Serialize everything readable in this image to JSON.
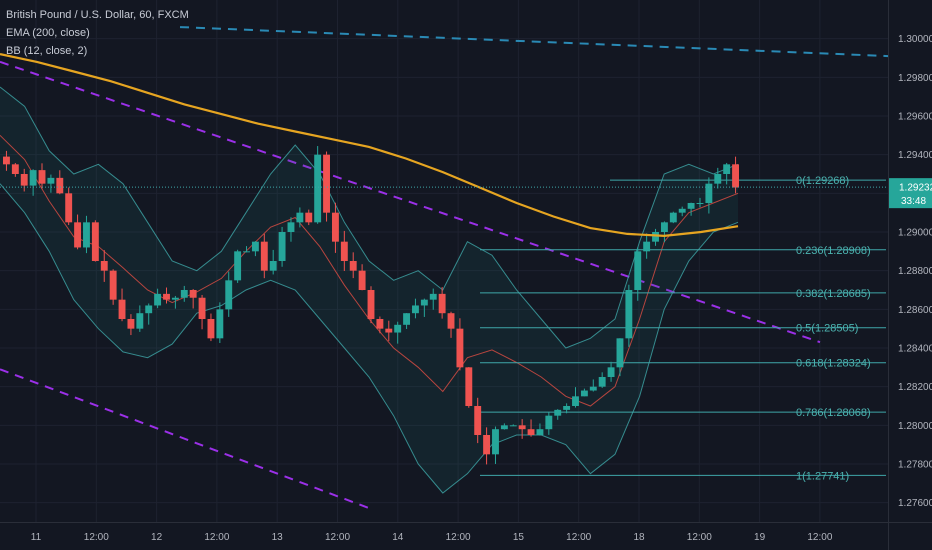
{
  "legend": {
    "symbol": "British Pound / U.S. Dollar, 60, FXCM",
    "ema": "EMA (200, close)",
    "bb": "BB (12, close, 2)"
  },
  "colors": {
    "background": "#131722",
    "grid": "#1e2230",
    "up": "#26a69a",
    "down": "#ef5350",
    "ema": "#e6a521",
    "bb_basis": "#b7453f",
    "bb_band": "#3fa7a9",
    "fib": "#3fa7a9",
    "trend_purple": "#9b30e8",
    "trend_blue": "#2a8ab5",
    "price_label_bg": "#26a69a",
    "price_dotted": "#3fa7a9"
  },
  "chart_data": {
    "type": "candlestick",
    "symbol": "British Pound / U.S. Dollar",
    "interval": "60",
    "x_ticks": [
      "11",
      "12:00",
      "12",
      "12:00",
      "13",
      "12:00",
      "14",
      "12:00",
      "15",
      "12:00",
      "18",
      "12:00",
      "19",
      "12:00"
    ],
    "y_ticks": [
      "1.27600",
      "1.27800",
      "1.28000",
      "1.28200",
      "1.28400",
      "1.28600",
      "1.28800",
      "1.29000",
      "1.29200",
      "1.29400",
      "1.29600",
      "1.29800",
      "1.30000"
    ],
    "ylim": [
      1.275,
      1.302
    ],
    "current_price": "1.29232",
    "countdown": "33:48",
    "fib_levels": [
      {
        "label": "0(1.29268)",
        "value": 1.29268
      },
      {
        "label": "0.236(1.28908)",
        "value": 1.28908
      },
      {
        "label": "0.382(1.28685)",
        "value": 1.28685
      },
      {
        "label": "0.5(1.28505)",
        "value": 1.28505
      },
      {
        "label": "0.618(1.28324)",
        "value": 1.28324
      },
      {
        "label": "0.786(1.28068)",
        "value": 1.28068
      },
      {
        "label": "1(1.27741)",
        "value": 1.27741
      }
    ],
    "close_path": [
      1.2935,
      1.293,
      1.2924,
      1.2932,
      1.2925,
      1.2928,
      1.292,
      1.2905,
      1.2892,
      1.2905,
      1.2885,
      1.288,
      1.2865,
      1.2855,
      1.285,
      1.2858,
      1.2862,
      1.2868,
      1.2865,
      1.2866,
      1.287,
      1.2866,
      1.2855,
      1.2845,
      1.286,
      1.2875,
      1.289,
      1.289,
      1.2895,
      1.288,
      1.2885,
      1.29,
      1.2905,
      1.291,
      1.2905,
      1.294,
      1.291,
      1.2895,
      1.2885,
      1.288,
      1.287,
      1.2855,
      1.285,
      1.2848,
      1.2852,
      1.2858,
      1.2862,
      1.2865,
      1.2868,
      1.2858,
      1.285,
      1.283,
      1.281,
      1.2795,
      1.2785,
      1.2798,
      1.28,
      1.28,
      1.2798,
      1.2795,
      1.2798,
      1.2805,
      1.2808,
      1.281,
      1.2815,
      1.2818,
      1.282,
      1.2825,
      1.283,
      1.2845,
      1.287,
      1.289,
      1.2895,
      1.29,
      1.2905,
      1.291,
      1.2912,
      1.2915,
      1.2915,
      1.2925,
      1.293,
      1.2935,
      1.2923
    ],
    "ema_path": [
      1.2992,
      1.2988,
      1.2983,
      1.2978,
      1.2972,
      1.2966,
      1.2961,
      1.2956,
      1.2952,
      1.2948,
      1.2944,
      1.2938,
      1.2931,
      1.2923,
      1.2915,
      1.2908,
      1.2902,
      1.2899,
      1.2898,
      1.29,
      1.2903
    ],
    "bb_upper": [
      1.2975,
      1.2965,
      1.2942,
      1.293,
      1.2935,
      1.2925,
      1.2905,
      1.2885,
      1.288,
      1.289,
      1.291,
      1.293,
      1.2945,
      1.293,
      1.2905,
      1.2885,
      1.2875,
      1.288,
      1.287,
      1.2895,
      1.2888,
      1.287,
      1.2855,
      1.284,
      1.2845,
      1.2855,
      1.2895,
      1.293,
      1.2935,
      1.293,
      1.2935
    ],
    "bb_lower": [
      1.2925,
      1.291,
      1.289,
      1.2865,
      1.285,
      1.2838,
      1.2835,
      1.2842,
      1.2858,
      1.2862,
      1.287,
      1.2875,
      1.287,
      1.2855,
      1.284,
      1.2825,
      1.2805,
      1.278,
      1.2765,
      1.2775,
      1.279,
      1.2795,
      1.2795,
      1.279,
      1.2775,
      1.2785,
      1.2815,
      1.286,
      1.2885,
      1.29,
      1.2905
    ],
    "trendlines": [
      {
        "name": "upper-purple",
        "from": [
          0,
          1.2988
        ],
        "to": [
          820,
          1.2843
        ]
      },
      {
        "name": "lower-purple",
        "from": [
          0,
          1.2829
        ],
        "to": [
          370,
          1.2757
        ]
      },
      {
        "name": "top-blue",
        "from": [
          180,
          1.3006
        ],
        "to": [
          888,
          1.2991
        ]
      }
    ]
  }
}
